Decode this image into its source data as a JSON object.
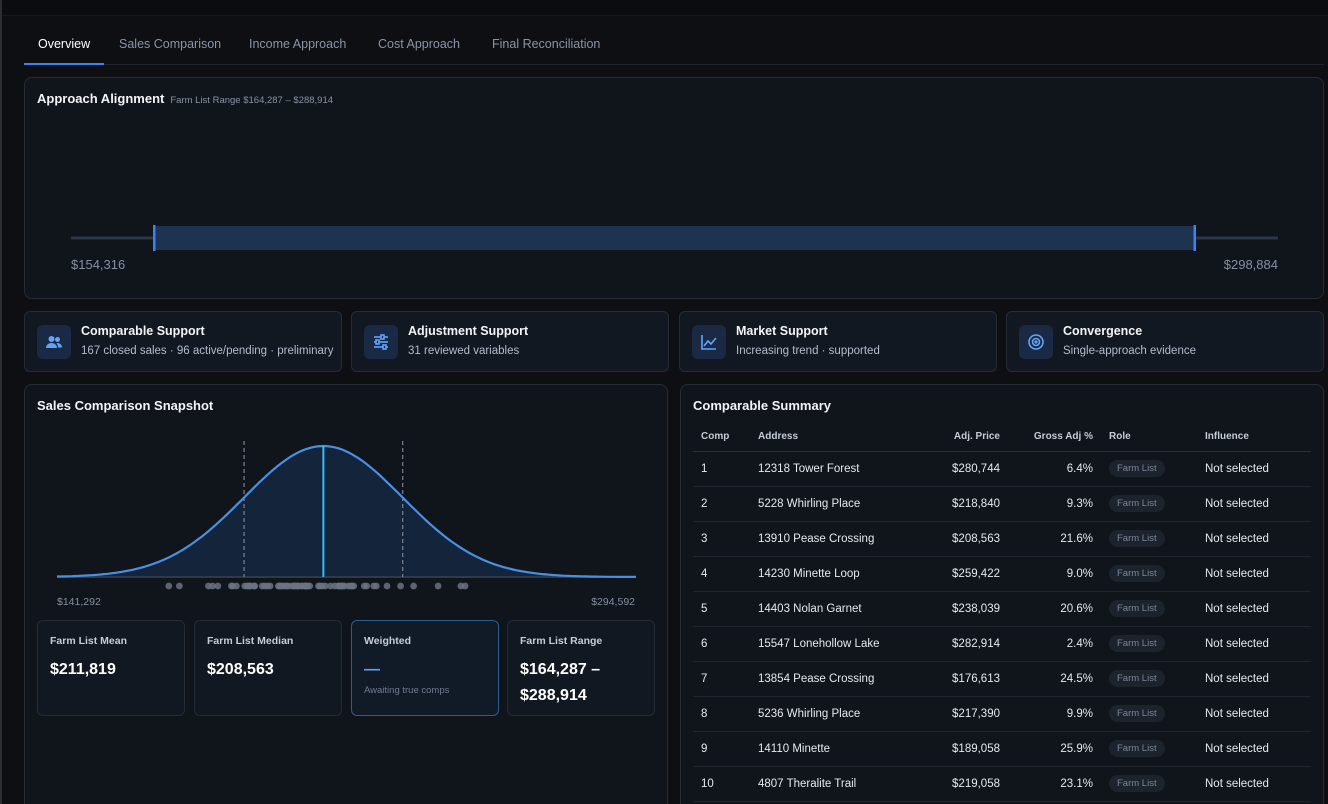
{
  "tabs": [
    {
      "label": "Overview",
      "active": true
    },
    {
      "label": "Sales Comparison",
      "active": false
    },
    {
      "label": "Income Approach",
      "active": false
    },
    {
      "label": "Cost Approach",
      "active": false
    },
    {
      "label": "Final Reconciliation",
      "active": false
    }
  ],
  "alignment": {
    "title": "Approach Alignment",
    "subtitle": "Farm List Range $164,287 – $288,914",
    "axis_min_label": "$154,316",
    "axis_max_label": "$298,884",
    "axis_min": 154316,
    "axis_max": 298884,
    "range_low": 164287,
    "range_high": 288914
  },
  "cards": [
    {
      "title": "Comparable Support",
      "text": "167 closed sales · 96 active/pending · preliminary",
      "icon": "users-icon"
    },
    {
      "title": "Adjustment Support",
      "text": "31 reviewed variables",
      "icon": "sliders-icon"
    },
    {
      "title": "Market Support",
      "text": "Increasing trend · supported",
      "icon": "trend-chart-icon"
    },
    {
      "title": "Convergence",
      "text": "Single-approach evidence",
      "icon": "target-icon"
    }
  ],
  "snapshot": {
    "title": "Sales Comparison Snapshot",
    "min_label": "$141,292",
    "max_label": "$294,592",
    "stats": [
      {
        "label": "Farm List Mean",
        "value": "$211,819",
        "note": ""
      },
      {
        "label": "Farm List Median",
        "value": "$208,563",
        "note": ""
      },
      {
        "label": "Weighted",
        "value": "—",
        "note": "Awaiting true comps"
      },
      {
        "label": "Farm List Range",
        "value": "$164,287 – $288,914",
        "note": ""
      }
    ]
  },
  "chart_data": {
    "type": "area",
    "title": "",
    "xlabel": "",
    "ylabel": "",
    "x_range": [
      141292,
      294592
    ],
    "distribution": "normal",
    "mean": 211819,
    "std_dev": 21000,
    "sigma_lines": [
      190819,
      232819
    ],
    "grid": false
  },
  "comparables": {
    "title": "Comparable Summary",
    "columns": [
      "Comp",
      "Address",
      "Adj. Price",
      "Gross Adj %",
      "Role",
      "Influence"
    ],
    "rows": [
      [
        "1",
        "12318 Tower Forest",
        "$280,744",
        "6.4%",
        "Farm List",
        "Not selected"
      ],
      [
        "2",
        "5228 Whirling Place",
        "$218,840",
        "9.3%",
        "Farm List",
        "Not selected"
      ],
      [
        "3",
        "13910 Pease Crossing",
        "$208,563",
        "21.6%",
        "Farm List",
        "Not selected"
      ],
      [
        "4",
        "14230 Minette Loop",
        "$259,422",
        "9.0%",
        "Farm List",
        "Not selected"
      ],
      [
        "5",
        "14403 Nolan Garnet",
        "$238,039",
        "20.6%",
        "Farm List",
        "Not selected"
      ],
      [
        "6",
        "15547 Lonehollow Lake",
        "$282,914",
        "2.4%",
        "Farm List",
        "Not selected"
      ],
      [
        "7",
        "13854 Pease Crossing",
        "$176,613",
        "24.5%",
        "Farm List",
        "Not selected"
      ],
      [
        "8",
        "5236 Whirling Place",
        "$217,390",
        "9.9%",
        "Farm List",
        "Not selected"
      ],
      [
        "9",
        "14110 Minette",
        "$189,058",
        "25.9%",
        "Farm List",
        "Not selected"
      ],
      [
        "10",
        "4807 Theralite Trail",
        "$219,058",
        "23.1%",
        "Farm List",
        "Not selected"
      ]
    ]
  },
  "colors": {
    "accent": "#3b82f6",
    "curve": "#4a90e2",
    "mean_line": "#38bdf8",
    "dots": "#6b7280"
  }
}
